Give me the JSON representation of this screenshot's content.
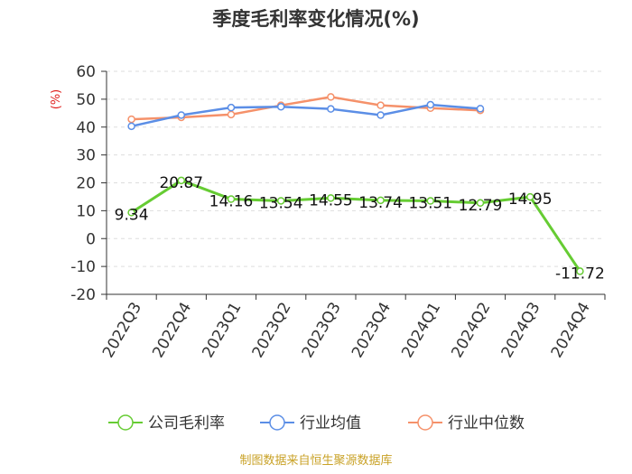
{
  "chart_data": {
    "type": "line",
    "title": "季度毛利率变化情况(%)",
    "ylabel": "(%)",
    "ylim": [
      -20,
      60
    ],
    "yticks": [
      60,
      50,
      40,
      30,
      20,
      10,
      0,
      -10,
      -20
    ],
    "categories": [
      "2022Q3",
      "2022Q4",
      "2023Q1",
      "2023Q2",
      "2023Q3",
      "2023Q4",
      "2024Q1",
      "2024Q2",
      "2024Q3",
      "2024Q4"
    ],
    "series": [
      {
        "name": "公司毛利率",
        "color": "#66cc33",
        "values": [
          9.34,
          20.87,
          14.16,
          13.54,
          14.55,
          13.74,
          13.51,
          12.79,
          14.95,
          -11.72
        ],
        "labels": [
          "9.34",
          "20.87",
          "14.16",
          "13.54",
          "14.55",
          "13.74",
          "13.51",
          "12.79",
          "14.95",
          "-11.72"
        ]
      },
      {
        "name": "行业均值",
        "color": "#5b8ee6",
        "values": [
          40.3,
          44.3,
          47.0,
          47.3,
          46.5,
          44.3,
          48.0,
          46.6,
          null,
          null
        ]
      },
      {
        "name": "行业中位数",
        "color": "#f5916a",
        "values": [
          42.8,
          43.5,
          44.5,
          47.8,
          50.8,
          47.8,
          46.8,
          46.0,
          null,
          null
        ]
      }
    ],
    "grid": true,
    "legend_position": "bottom"
  },
  "source_text": "制图数据来自恒生聚源数据库"
}
